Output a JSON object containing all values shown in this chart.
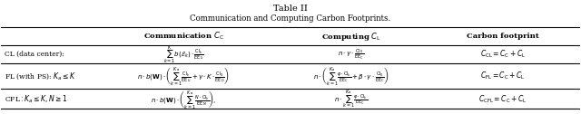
{
  "title1": "Table II",
  "title2": "Communication and Computing Carbon Footprints.",
  "col_headers": [
    "Communication $C_\\mathrm{C}$",
    "Computing $C_\\mathrm{L}$",
    "Carbon footprint"
  ],
  "rows": [
    {
      "label": "CL (data center):",
      "comm": "$\\sum_{k=1}^{K} b(\\mathcal{E}_k) \\cdot \\dfrac{\\mathrm{CI}_k}{\\mathrm{EE}_\\mathrm{U}}$",
      "comp": "$n \\cdot \\gamma \\cdot \\dfrac{\\mathrm{CI}_0}{\\mathrm{EE}_\\mathrm{C}}$",
      "carbon": "$C_\\mathrm{CL} = C_\\mathrm{C} + C_\\mathrm{L}$"
    },
    {
      "label": "FL (with PS): $K_a \\leq K$",
      "comm": "$n \\cdot b(\\mathbf{W}) \\cdot \\left(\\sum_{k=1}^{K_a} \\dfrac{\\mathrm{CI}_k}{\\mathrm{EE}_\\mathrm{U}} + \\gamma \\cdot K \\cdot \\dfrac{\\mathrm{CI}_0}{\\mathrm{EE}_\\mathrm{D}}\\right)$",
      "comp": "$n \\cdot \\left(\\sum_{k=1}^{K_a} \\dfrac{\\varphi \\cdot \\mathrm{CI}_k}{\\mathrm{EE}_\\mathrm{C}} + \\beta \\cdot \\gamma \\cdot \\dfrac{\\mathrm{CI}_0}{\\mathrm{EE}_\\mathrm{C}}\\right)$",
      "carbon": "$C_\\mathrm{FL} = C_\\mathrm{C} + C_\\mathrm{L}$"
    },
    {
      "label": "CFL$: K_a \\leq K, N \\geq 1$",
      "comm": "$n \\cdot b(\\mathbf{W}) \\cdot \\left(\\sum_{k=1}^{K_a} \\dfrac{N \\cdot \\mathrm{CI}_k}{\\mathrm{EE}_\\mathrm{M}}\\right),$",
      "comp": "$n \\cdot \\sum_{k=1}^{K_a} \\dfrac{\\varphi \\cdot \\mathrm{CI}_k}{\\mathrm{EE}_\\mathrm{C}}$",
      "carbon": "$C_\\mathrm{CFL} = C_\\mathrm{C} + C_\\mathrm{L}$"
    }
  ],
  "bg_color": "#f0f0f0",
  "text_color": "#1a1a1a"
}
